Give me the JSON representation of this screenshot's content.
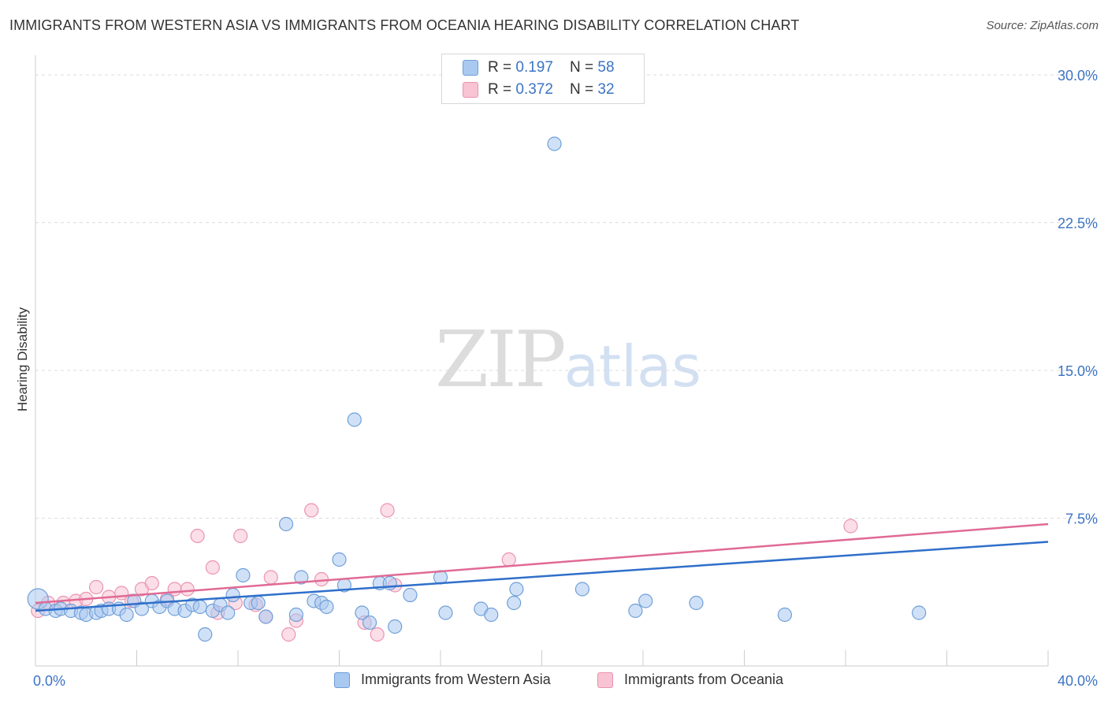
{
  "title": "IMMIGRANTS FROM WESTERN ASIA VS IMMIGRANTS FROM OCEANIA HEARING DISABILITY CORRELATION CHART",
  "source": "Source: ZipAtlas.com",
  "watermark": {
    "zip": "ZIP",
    "atlas": "atlas"
  },
  "legend_top": [
    {
      "r_label": "R = ",
      "r_value": "0.197",
      "n_label": "N = ",
      "n_value": "58"
    },
    {
      "r_label": "R = ",
      "r_value": "0.372",
      "n_label": "N = ",
      "n_value": "32"
    }
  ],
  "colors": {
    "blue_fill": "#a9c9f0",
    "blue_stroke": "#6f9fd8",
    "blue_line": "#2f6fca",
    "pink_fill": "#f8c3d3",
    "pink_stroke": "#ec93b0",
    "pink_line": "#e06a95",
    "value_text": "#3b73c4",
    "grid": "#dddddd"
  },
  "chart_data": {
    "type": "scatter",
    "title": "IMMIGRANTS FROM WESTERN ASIA VS IMMIGRANTS FROM OCEANIA HEARING DISABILITY CORRELATION CHART",
    "xlabel": "",
    "ylabel": "Hearing Disability",
    "xlim": [
      0,
      40
    ],
    "ylim": [
      0,
      31
    ],
    "x_tick_labels": [
      "0.0%",
      "40.0%"
    ],
    "y_ticks": [
      7.5,
      15.0,
      22.5,
      30.0
    ],
    "y_tick_labels": [
      "7.5%",
      "15.0%",
      "22.5%",
      "30.0%"
    ],
    "series": [
      {
        "name": "Immigrants from Western Asia",
        "color": "blue",
        "trend": {
          "x": [
            0,
            40
          ],
          "y": [
            2.8,
            6.3
          ]
        },
        "points": [
          [
            0.1,
            3.4
          ],
          [
            0.4,
            2.9
          ],
          [
            0.8,
            2.8
          ],
          [
            1.0,
            2.9
          ],
          [
            1.4,
            2.8
          ],
          [
            1.8,
            2.7
          ],
          [
            2.0,
            2.6
          ],
          [
            2.4,
            2.7
          ],
          [
            2.6,
            2.8
          ],
          [
            2.9,
            2.9
          ],
          [
            3.3,
            2.9
          ],
          [
            3.6,
            2.6
          ],
          [
            3.9,
            3.3
          ],
          [
            4.2,
            2.9
          ],
          [
            4.6,
            3.3
          ],
          [
            4.9,
            3.0
          ],
          [
            5.2,
            3.3
          ],
          [
            5.5,
            2.9
          ],
          [
            5.9,
            2.8
          ],
          [
            6.2,
            3.1
          ],
          [
            6.5,
            3.0
          ],
          [
            6.7,
            1.6
          ],
          [
            7.0,
            2.8
          ],
          [
            7.3,
            3.1
          ],
          [
            7.6,
            2.7
          ],
          [
            7.8,
            3.6
          ],
          [
            8.2,
            4.6
          ],
          [
            8.5,
            3.2
          ],
          [
            8.8,
            3.2
          ],
          [
            9.1,
            2.5
          ],
          [
            9.9,
            7.2
          ],
          [
            10.3,
            2.6
          ],
          [
            10.5,
            4.5
          ],
          [
            11.0,
            3.3
          ],
          [
            11.3,
            3.2
          ],
          [
            11.5,
            3.0
          ],
          [
            12.0,
            5.4
          ],
          [
            12.2,
            4.1
          ],
          [
            12.6,
            12.5
          ],
          [
            12.9,
            2.7
          ],
          [
            13.2,
            2.2
          ],
          [
            13.6,
            4.2
          ],
          [
            14.0,
            4.2
          ],
          [
            14.2,
            2.0
          ],
          [
            14.8,
            3.6
          ],
          [
            16.0,
            4.5
          ],
          [
            16.2,
            2.7
          ],
          [
            17.6,
            2.9
          ],
          [
            18.0,
            2.6
          ],
          [
            18.9,
            3.2
          ],
          [
            19.0,
            3.9
          ],
          [
            20.5,
            26.5
          ],
          [
            21.6,
            3.9
          ],
          [
            23.7,
            2.8
          ],
          [
            24.1,
            3.3
          ],
          [
            26.1,
            3.2
          ],
          [
            29.6,
            2.6
          ],
          [
            34.9,
            2.7
          ]
        ]
      },
      {
        "name": "Immigrants from Oceania",
        "color": "pink",
        "trend": {
          "x": [
            0,
            40
          ],
          "y": [
            3.2,
            7.2
          ]
        },
        "points": [
          [
            0.1,
            2.8
          ],
          [
            0.5,
            3.2
          ],
          [
            1.1,
            3.2
          ],
          [
            1.6,
            3.3
          ],
          [
            2.0,
            3.4
          ],
          [
            2.4,
            4.0
          ],
          [
            2.9,
            3.5
          ],
          [
            3.4,
            3.7
          ],
          [
            3.8,
            3.3
          ],
          [
            4.2,
            3.9
          ],
          [
            4.6,
            4.2
          ],
          [
            5.2,
            3.4
          ],
          [
            5.5,
            3.9
          ],
          [
            6.0,
            3.9
          ],
          [
            6.4,
            6.6
          ],
          [
            7.0,
            5.0
          ],
          [
            7.2,
            2.7
          ],
          [
            7.9,
            3.2
          ],
          [
            8.1,
            6.6
          ],
          [
            8.7,
            3.1
          ],
          [
            9.1,
            2.5
          ],
          [
            9.3,
            4.5
          ],
          [
            10.0,
            1.6
          ],
          [
            10.3,
            2.3
          ],
          [
            10.9,
            7.9
          ],
          [
            11.3,
            4.4
          ],
          [
            13.0,
            2.2
          ],
          [
            13.5,
            1.6
          ],
          [
            13.9,
            7.9
          ],
          [
            14.2,
            4.1
          ],
          [
            18.7,
            5.4
          ],
          [
            32.2,
            7.1
          ]
        ]
      }
    ]
  }
}
